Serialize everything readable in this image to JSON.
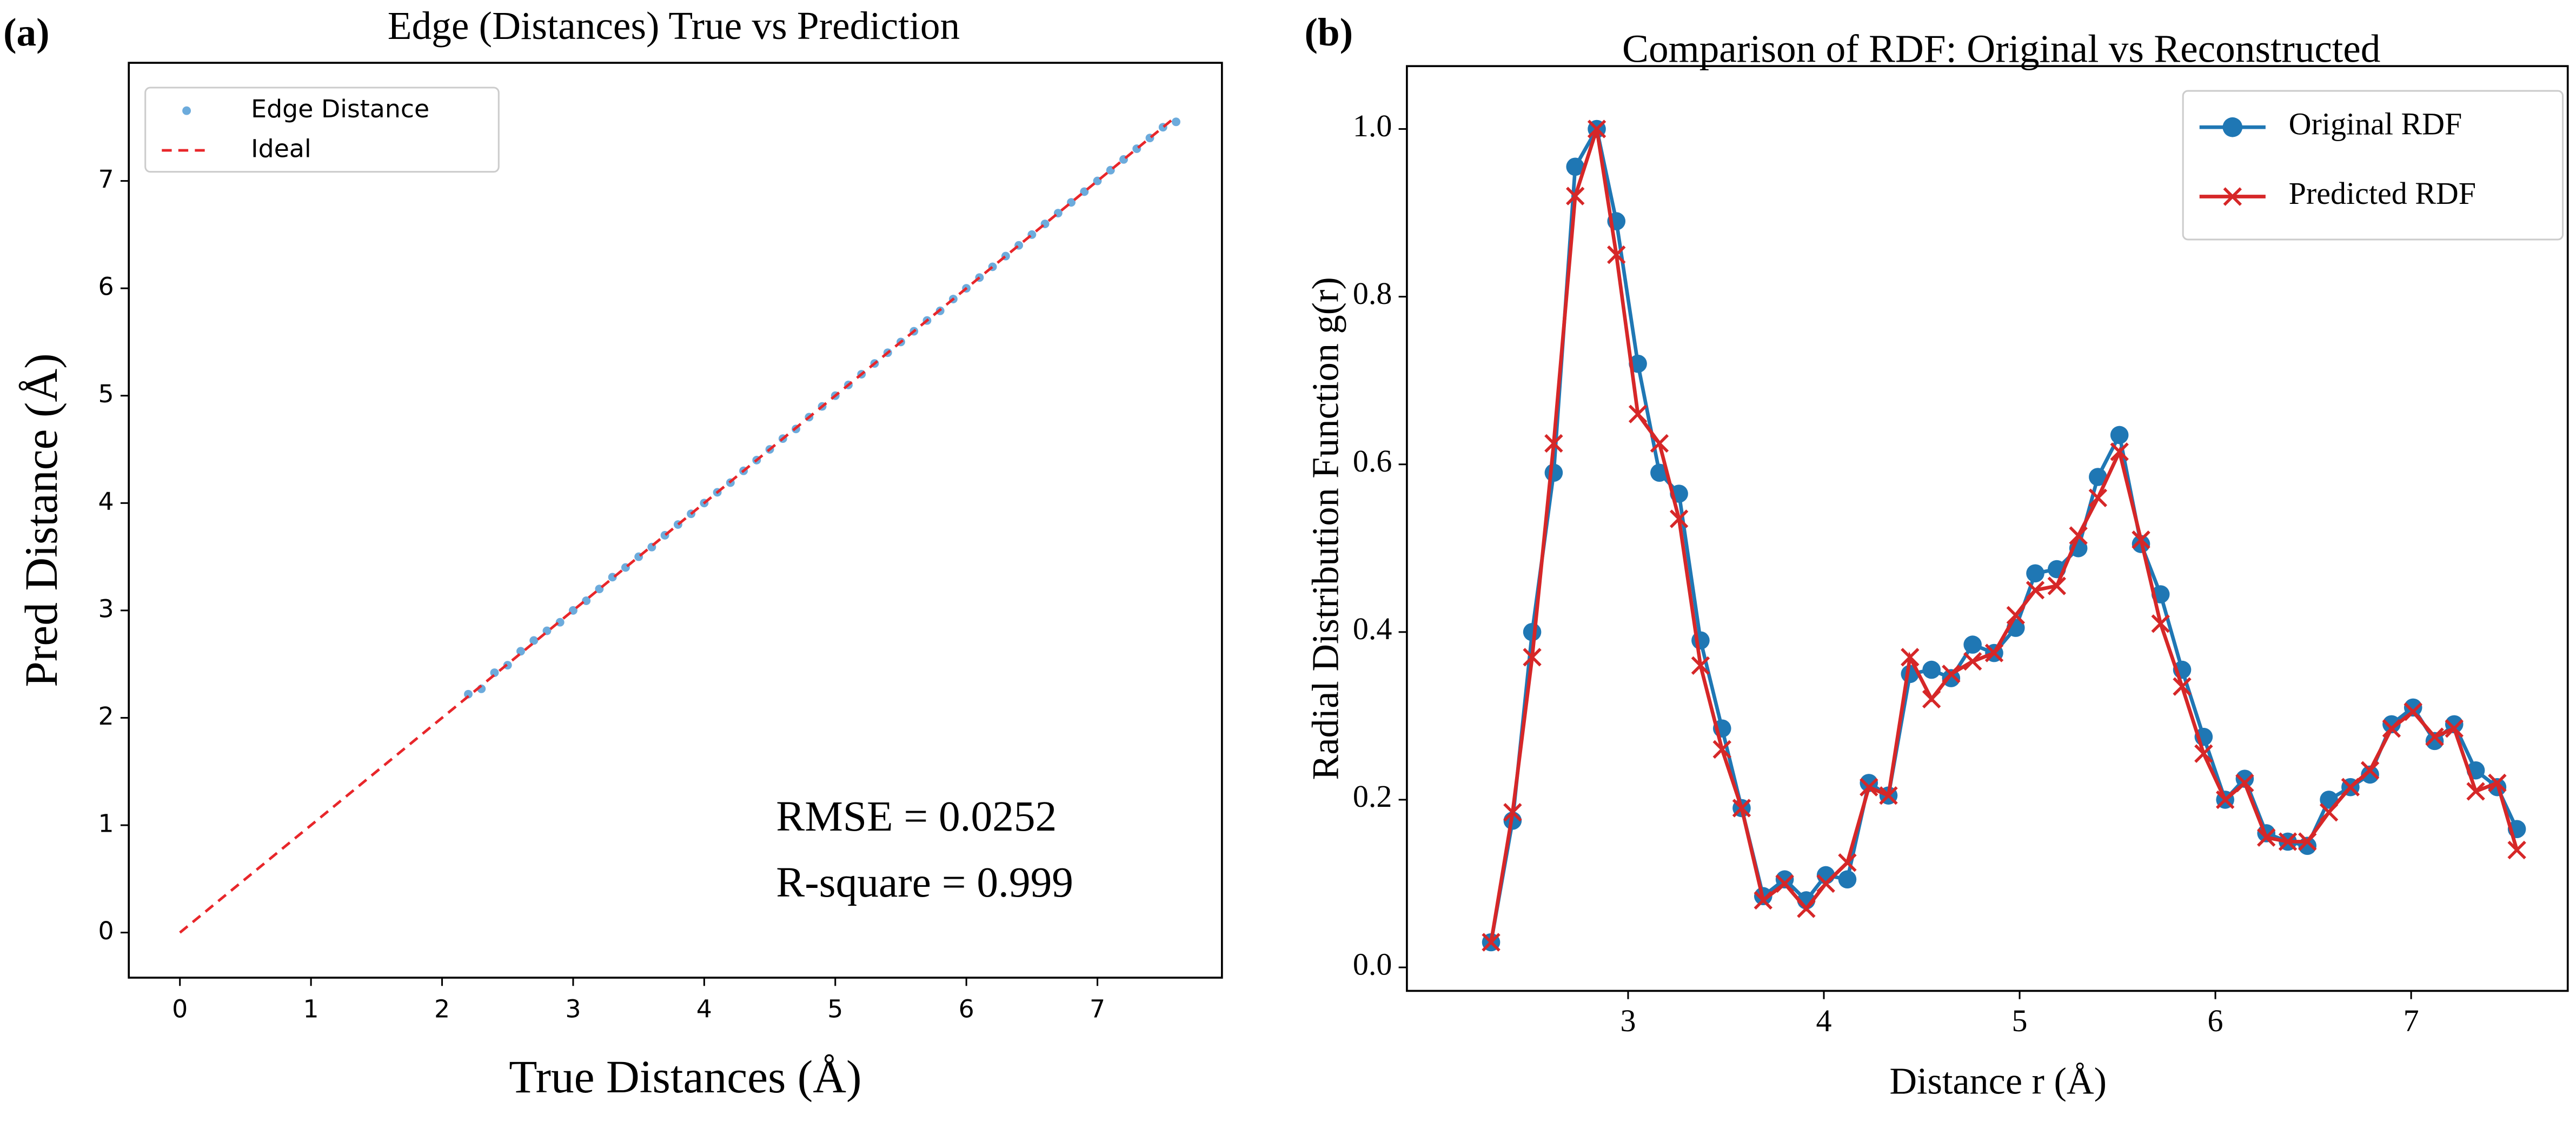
{
  "chart_data": [
    {
      "type": "scatter",
      "label": "(a)",
      "title": "Edge (Distances) True vs Prediction",
      "xlabel": "True Distances (Å)",
      "ylabel": "Pred Distance (Å)",
      "xlim": [
        -0.39,
        7.95
      ],
      "ylim": [
        -0.42,
        8.1
      ],
      "xticks": [
        0,
        1,
        2,
        3,
        4,
        5,
        6,
        7
      ],
      "yticks": [
        0,
        1,
        2,
        3,
        4,
        5,
        6,
        7
      ],
      "legend": "upper left",
      "annotations": [
        "RMSE = 0.0252",
        "R-square = 0.999"
      ],
      "series": [
        {
          "name": "Edge Distance",
          "color": "#3b8fd0",
          "marker": "dot",
          "x": [
            2.2,
            2.3,
            2.4,
            2.5,
            2.6,
            2.7,
            2.8,
            2.9,
            3.0,
            3.1,
            3.2,
            3.3,
            3.4,
            3.5,
            3.6,
            3.7,
            3.8,
            3.9,
            4.0,
            4.1,
            4.2,
            4.3,
            4.4,
            4.5,
            4.6,
            4.7,
            4.8,
            4.9,
            5.0,
            5.1,
            5.2,
            5.3,
            5.4,
            5.5,
            5.6,
            5.7,
            5.8,
            5.9,
            6.0,
            6.1,
            6.2,
            6.3,
            6.4,
            6.5,
            6.6,
            6.7,
            6.8,
            6.9,
            7.0,
            7.1,
            7.2,
            7.3,
            7.4,
            7.5,
            7.6
          ],
          "values": [
            2.22,
            2.27,
            2.42,
            2.49,
            2.62,
            2.72,
            2.81,
            2.89,
            3.0,
            3.09,
            3.2,
            3.31,
            3.4,
            3.5,
            3.59,
            3.7,
            3.8,
            3.9,
            4.0,
            4.1,
            4.19,
            4.3,
            4.4,
            4.5,
            4.6,
            4.69,
            4.8,
            4.9,
            5.0,
            5.1,
            5.2,
            5.3,
            5.4,
            5.5,
            5.6,
            5.7,
            5.79,
            5.9,
            6.0,
            6.1,
            6.2,
            6.3,
            6.4,
            6.5,
            6.6,
            6.7,
            6.8,
            6.9,
            7.0,
            7.1,
            7.2,
            7.3,
            7.4,
            7.5,
            7.55
          ]
        },
        {
          "name": "Ideal",
          "color": "#e8262a",
          "linestyle": "dashed",
          "x": [
            0,
            7.6
          ],
          "values": [
            0,
            7.6
          ]
        }
      ]
    },
    {
      "type": "line",
      "label": "(b)",
      "title": "Comparison of RDF: Original vs Reconstructed",
      "xlabel": "Distance r (Å)",
      "ylabel": "Radial Distribution Function g(r)",
      "xlim": [
        1.87,
        7.8
      ],
      "ylim": [
        -0.028,
        1.075
      ],
      "xticks": [
        3,
        4,
        5,
        6,
        7
      ],
      "yticks": [
        {
          "value": 0,
          "label": "0.0"
        },
        0.2,
        0.4,
        0.6,
        0.8,
        {
          "value": 1,
          "label": "1.0"
        }
      ],
      "legend": "upper right",
      "x": [
        2.3,
        2.41,
        2.51,
        2.62,
        2.73,
        2.84,
        2.94,
        3.05,
        3.16,
        3.26,
        3.37,
        3.48,
        3.58,
        3.69,
        3.8,
        3.91,
        4.01,
        4.12,
        4.23,
        4.33,
        4.44,
        4.55,
        4.65,
        4.76,
        4.87,
        4.98,
        5.08,
        5.19,
        5.3,
        5.4,
        5.51,
        5.62,
        5.72,
        5.83,
        5.94,
        6.05,
        6.15,
        6.26,
        6.37,
        6.47,
        6.58,
        6.69,
        6.79,
        6.9,
        7.01,
        7.12,
        7.22,
        7.33,
        7.44,
        7.54
      ],
      "series": [
        {
          "name": "Original RDF",
          "color": "#1f77b4",
          "marker": "o",
          "values": [
            0.03,
            0.175,
            0.4,
            0.59,
            0.955,
            1.0,
            0.89,
            0.72,
            0.59,
            0.565,
            0.39,
            0.285,
            0.19,
            0.085,
            0.105,
            0.08,
            0.11,
            0.105,
            0.22,
            0.205,
            0.35,
            0.355,
            0.345,
            0.385,
            0.375,
            0.405,
            0.47,
            0.475,
            0.5,
            0.585,
            0.635,
            0.505,
            0.445,
            0.355,
            0.275,
            0.2,
            0.225,
            0.16,
            0.15,
            0.145,
            0.2,
            0.215,
            0.23,
            0.29,
            0.31,
            0.27,
            0.29,
            0.235,
            0.215,
            0.165
          ]
        },
        {
          "name": "Predicted RDF",
          "color": "#d62728",
          "marker": "x",
          "values": [
            0.03,
            0.185,
            0.37,
            0.625,
            0.92,
            1.0,
            0.85,
            0.66,
            0.625,
            0.535,
            0.36,
            0.26,
            0.19,
            0.08,
            0.1,
            0.07,
            0.1,
            0.125,
            0.215,
            0.205,
            0.37,
            0.32,
            0.35,
            0.365,
            0.375,
            0.42,
            0.45,
            0.455,
            0.515,
            0.56,
            0.615,
            0.51,
            0.41,
            0.335,
            0.255,
            0.2,
            0.22,
            0.155,
            0.15,
            0.15,
            0.185,
            0.215,
            0.235,
            0.285,
            0.305,
            0.275,
            0.285,
            0.21,
            0.22,
            0.14
          ]
        }
      ]
    }
  ]
}
